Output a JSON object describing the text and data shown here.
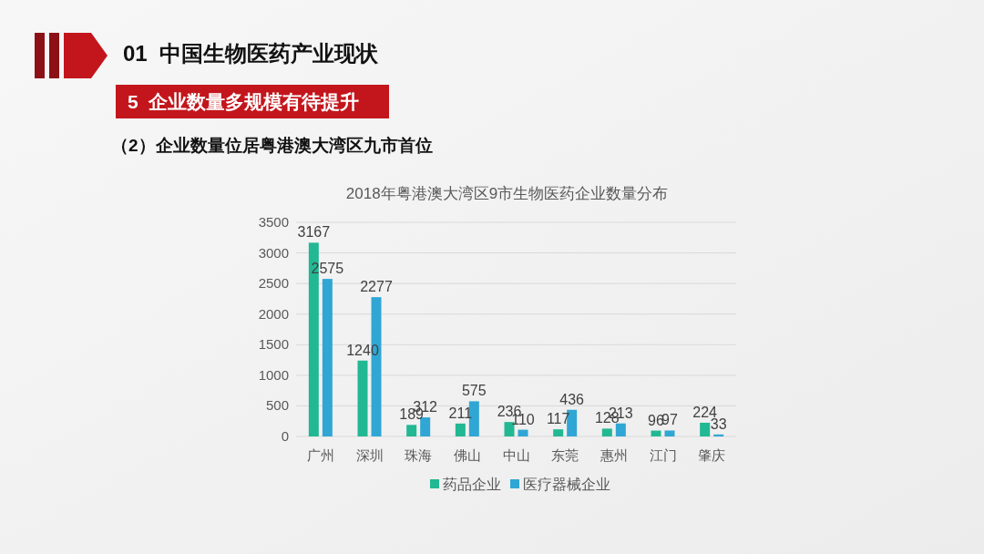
{
  "chart_data": {
    "type": "bar",
    "title": "2018年粤港澳大湾区9市生物医药企业数量分布",
    "annotations": [
      "01  中国生物医药产业现状",
      "5  企业数量多规模有待提升",
      "（2）企业数量位居粤港澳大湾区九市首位"
    ],
    "categories": [
      "广州",
      "深圳",
      "珠海",
      "佛山",
      "中山",
      "东莞",
      "惠州",
      "江门",
      "肇庆"
    ],
    "series": [
      {
        "name": "药品企业",
        "color": "#22b893",
        "values": [
          3167,
          1240,
          189,
          211,
          236,
          117,
          128,
          96,
          224
        ]
      },
      {
        "name": "医疗器械企业",
        "color": "#30a6d4",
        "values": [
          2575,
          2277,
          312,
          575,
          110,
          436,
          213,
          97,
          33
        ]
      }
    ],
    "ylim": [
      0,
      3500
    ],
    "yticks": [
      0,
      500,
      1000,
      1500,
      2000,
      2500,
      3000,
      3500
    ],
    "grid": "y",
    "legend": "bottom",
    "data_labels": true
  }
}
